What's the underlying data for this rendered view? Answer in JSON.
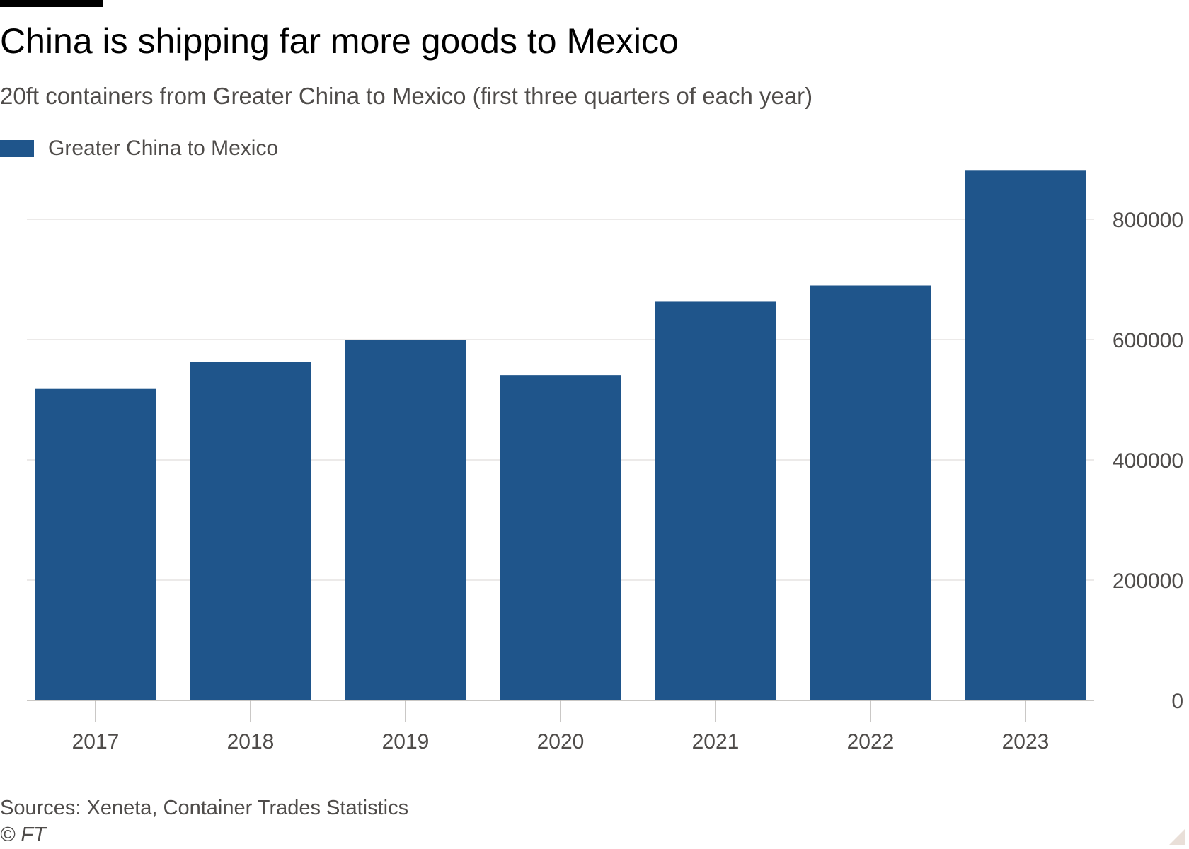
{
  "header": {
    "title": "China is shipping far more goods to Mexico",
    "subtitle": "20ft containers from Greater China to Mexico (first three quarters of each year)"
  },
  "legend": {
    "label": "Greater China to Mexico",
    "color": "#1f558b"
  },
  "footer": {
    "source": "Sources: Xeneta, Container Trades Statistics",
    "copyright": "© FT"
  },
  "chart_data": {
    "type": "bar",
    "title": "China is shipping far more goods to Mexico",
    "subtitle": "20ft containers from Greater China to Mexico (first three quarters of each year)",
    "categories": [
      "2017",
      "2018",
      "2019",
      "2020",
      "2021",
      "2022",
      "2023"
    ],
    "series": [
      {
        "name": "Greater China to Mexico",
        "color": "#1f558b",
        "values": [
          518000,
          563000,
          600000,
          541000,
          663000,
          690000,
          882000
        ]
      }
    ],
    "xlabel": "",
    "ylabel": "",
    "ylim": [
      0,
      900000
    ],
    "yticks": [
      0,
      200000,
      400000,
      600000,
      800000
    ],
    "ytick_labels": [
      "0",
      "200000",
      "400000",
      "600000",
      "800000"
    ],
    "y_axis_position": "right",
    "grid": true,
    "legend_position": "top-left",
    "colors": {
      "bar": "#1f558b",
      "grid": "#e6e4e2",
      "axis": "#b8b5b2",
      "text": "#4f4c4a"
    }
  }
}
